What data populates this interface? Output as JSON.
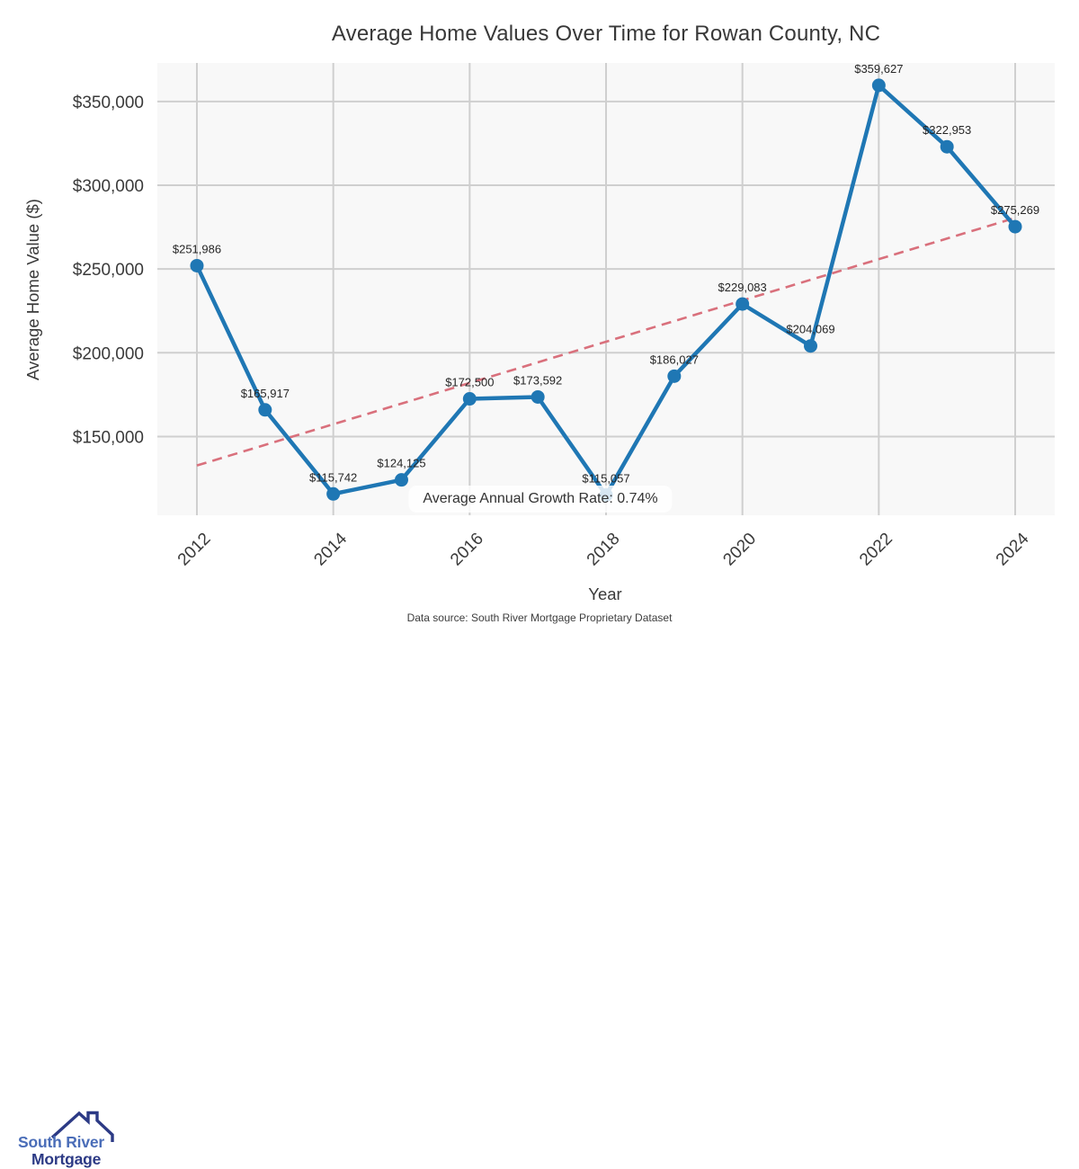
{
  "chart_data": {
    "type": "line",
    "title": "Average Home Values Over Time for Rowan County, NC",
    "xlabel": "Year",
    "ylabel": "Average Home Value ($)",
    "x": [
      2012,
      2013,
      2014,
      2015,
      2016,
      2017,
      2018,
      2019,
      2020,
      2021,
      2022,
      2023,
      2024
    ],
    "series": [
      {
        "name": "Average Home Value",
        "color": "#1f77b4",
        "values": [
          251986,
          165917,
          115742,
          124125,
          172500,
          173592,
          115057,
          186027,
          229083,
          204069,
          359627,
          322953,
          275269
        ]
      }
    ],
    "point_labels": [
      "$251,986",
      "$165,917",
      "$115,742",
      "$124,125",
      "$172,500",
      "$173,592",
      "$115,057",
      "$186,027",
      "$229,083",
      "$204,069",
      "$359,627",
      "$322,953",
      "$275,269"
    ],
    "xticks": [
      2012,
      2014,
      2016,
      2018,
      2020,
      2022,
      2024
    ],
    "yticks": [
      {
        "value": 150000,
        "label": "$150,000"
      },
      {
        "value": 200000,
        "label": "$200,000"
      },
      {
        "value": 250000,
        "label": "$250,000"
      },
      {
        "value": 300000,
        "label": "$300,000"
      },
      {
        "value": 350000,
        "label": "$350,000"
      }
    ],
    "xlim": [
      2011.42,
      2024.58
    ],
    "ylim": [
      103000,
      373000
    ],
    "grid": true,
    "legend": "none",
    "plot_bg_color": "#f8f8f8",
    "grid_color": "#cfcfcf",
    "trend_line": {
      "style": "dashed",
      "color": "#d9707c",
      "x": [
        2012,
        2024
      ],
      "values": [
        132700,
        280500
      ]
    }
  },
  "annotation": "Average Annual Growth Rate: 0.74%",
  "footer": "Data source: South River Mortgage Proprietary Dataset",
  "logo": {
    "line1": "South River",
    "line2": "Mortgage",
    "colors": {
      "primary": "#4a6db8",
      "navy": "#2c3a85"
    }
  }
}
